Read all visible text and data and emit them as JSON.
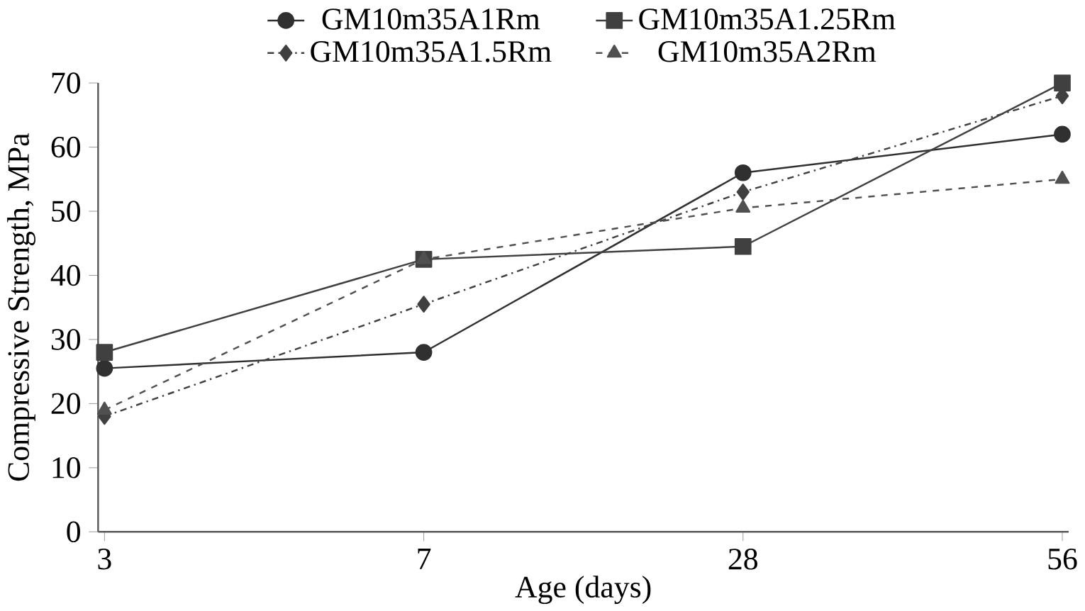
{
  "chart_data": {
    "type": "line",
    "xlabel": "Age (days)",
    "ylabel": "Compressive Strength, MPa",
    "categories": [
      "3",
      "7",
      "28",
      "56"
    ],
    "ylim": [
      0,
      70
    ],
    "yticks": [
      0,
      10,
      20,
      30,
      40,
      50,
      60,
      70
    ],
    "grid": false,
    "legend": "top",
    "series": [
      {
        "name": "GM10m35A1Rm",
        "color": "#303030",
        "marker": "circle",
        "line_style": "solid",
        "values": [
          25.5,
          28,
          56,
          62
        ]
      },
      {
        "name": "GM10m35A1.25Rm",
        "color": "#404040",
        "marker": "square",
        "line_style": "solid",
        "values": [
          28,
          42.5,
          44.5,
          70
        ]
      },
      {
        "name": "GM10m35A1.5Rm",
        "color": "#404040",
        "marker": "diamond",
        "line_style": "dashdotted",
        "values": [
          18,
          35.5,
          53,
          68
        ]
      },
      {
        "name": "GM10m35A2Rm",
        "color": "#505050",
        "marker": "triangle",
        "line_style": "dashed",
        "values": [
          19,
          42.5,
          50.5,
          55
        ]
      }
    ]
  }
}
